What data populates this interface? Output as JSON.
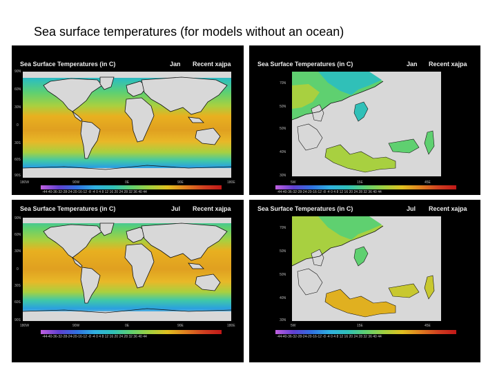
{
  "slide": {
    "title": "Sea surface temperatures (for models without an ocean)"
  },
  "panels": [
    {
      "title": "Sea Surface Temperatures (in C)",
      "month": "Jan",
      "experiment": "Recent xajpa",
      "ylabels": [
        "90N",
        "60N",
        "30N",
        "0",
        "30S",
        "60S",
        "90S"
      ],
      "xlabels": [
        "180W",
        "90W",
        "0E",
        "90E",
        "180E"
      ],
      "colorbar_ticks": "-44-40-36-32-28-24-20-16-12 -8 -4  0  4  8 12 16 20 24 28 32 36 40 44"
    },
    {
      "title": "Sea Surface Temperatures (in C)",
      "month": "Jan",
      "experiment": "Recent xajpa",
      "ylabels": [
        "70N",
        "50N",
        "50N",
        "40N",
        "30N"
      ],
      "xlabels": [
        "5W",
        "15E",
        "45E"
      ],
      "colorbar_ticks": "-44-40-36-32-28-24-20-16-12 -8 -4  0  4  8 12 16 20 24 28 32 36 40 44"
    },
    {
      "title": "Sea Surface Temperatures (in C)",
      "month": "Jul",
      "experiment": "Recent xajpa",
      "ylabels": [
        "90N",
        "60N",
        "30N",
        "0",
        "30S",
        "60S",
        "90S"
      ],
      "xlabels": [
        "180W",
        "90W",
        "0E",
        "90E",
        "180E"
      ],
      "colorbar_ticks": "-44-40-36-32-28-24-20-16-12 -8 -4  0  4  8 12 16 20 24 28 32 36 40 44"
    },
    {
      "title": "Sea Surface Temperatures (in C)",
      "month": "Jul",
      "experiment": "Recent xajpa",
      "ylabels": [
        "70N",
        "50N",
        "50N",
        "40N",
        "30N"
      ],
      "xlabels": [
        "5W",
        "15E",
        "45E"
      ],
      "colorbar_ticks": "-44-40-36-32-28-24-20-16-12 -8 -4  0  4  8 12 16 20 24 28 32 36 40 44"
    }
  ],
  "colors": {
    "warm": "#e0a020",
    "tropical": "#e8b020",
    "mid": "#a8d040",
    "temperate": "#5fd070",
    "cold": "#30c0b8",
    "polar": "#2aa0e0",
    "land": "#d8d8d8",
    "coast": "#111111"
  }
}
